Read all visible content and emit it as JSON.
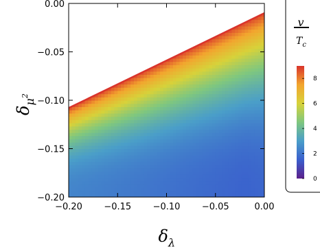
{
  "chart_data": {
    "type": "heatmap",
    "title": "",
    "x_axis": {
      "variable": "δ",
      "subscript": "λ",
      "range": [
        -0.2,
        0.0
      ],
      "ticks": [
        -0.2,
        -0.15,
        -0.1,
        -0.05,
        0.0
      ],
      "tick_labels": [
        "−0.20",
        "−0.15",
        "−0.10",
        "−0.05",
        "0.00"
      ]
    },
    "y_axis": {
      "variable": "δ",
      "subscript": "μ",
      "subscript_power": "2",
      "range": [
        -0.2,
        0.0
      ],
      "ticks": [
        0.0,
        -0.05,
        -0.1,
        -0.15,
        -0.2
      ],
      "tick_labels": [
        "0.00",
        "−0.05",
        "−0.10",
        "−0.15",
        "−0.20"
      ]
    },
    "region": {
      "description_points": [
        [
          -0.2,
          -0.2
        ],
        [
          0.0,
          -0.2
        ],
        [
          0.0,
          -0.01
        ],
        [
          -0.2,
          -0.108
        ]
      ],
      "boundary_line": {
        "x": [
          -0.2,
          0.0
        ],
        "y": [
          -0.108,
          -0.01
        ]
      }
    },
    "value_field": {
      "min_value": 1.6,
      "max_value": 8.7,
      "min_at": [
        -0.02,
        -0.2
      ]
    },
    "colorbar": {
      "label_numerator": "v",
      "label_denominator": "T",
      "label_denominator_sub": "c",
      "range": [
        0,
        9
      ],
      "ticks": [
        0,
        2,
        4,
        6,
        8
      ],
      "colors": [
        "#5b1f8a",
        "#3a5fcd",
        "#4a9ec9",
        "#7fc77f",
        "#d7d23a",
        "#f2a52e",
        "#d9342b"
      ],
      "position": "right"
    },
    "grid": false
  }
}
